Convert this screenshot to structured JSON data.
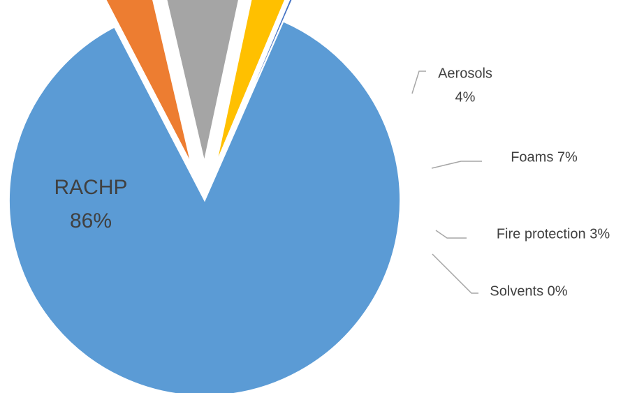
{
  "chart_data": {
    "type": "pie",
    "exploded_slices": [
      "Aerosols",
      "Foams",
      "Fire protection",
      "Solvents"
    ],
    "slices": [
      {
        "label": "RACHP",
        "value": 86,
        "value_label": "86%",
        "color": "#5B9BD5"
      },
      {
        "label": "Aerosols",
        "value": 4,
        "value_label": "4%",
        "color": "#ED7D31"
      },
      {
        "label": "Foams",
        "value": 7,
        "value_label": "7%",
        "color": "#A5A5A5"
      },
      {
        "label": "Fire protection",
        "value": 3,
        "value_label": "3%",
        "color": "#FFC000"
      },
      {
        "label": "Solvents",
        "value": 0,
        "value_label": "0%",
        "color": "#4472C4"
      }
    ],
    "leader_line_color": "#A6A6A6"
  }
}
